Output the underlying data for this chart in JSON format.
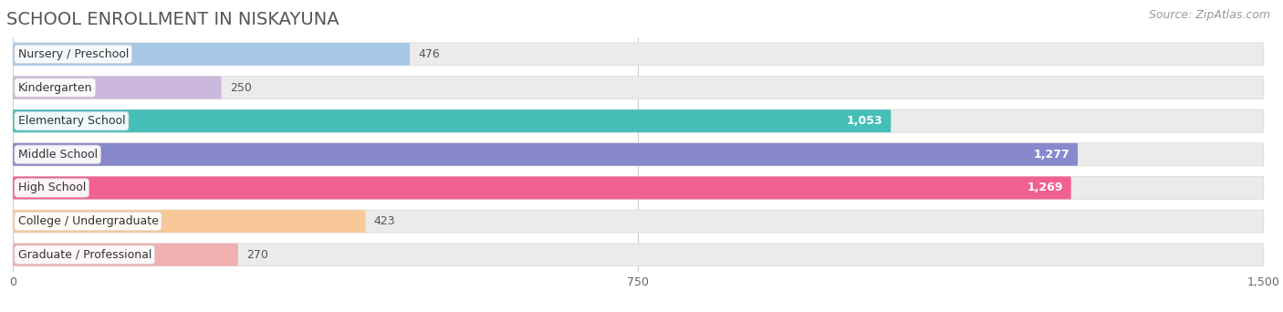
{
  "title": "SCHOOL ENROLLMENT IN NISKAYUNA",
  "source": "Source: ZipAtlas.com",
  "categories": [
    "Nursery / Preschool",
    "Kindergarten",
    "Elementary School",
    "Middle School",
    "High School",
    "College / Undergraduate",
    "Graduate / Professional"
  ],
  "values": [
    476,
    250,
    1053,
    1277,
    1269,
    423,
    270
  ],
  "bar_colors": [
    "#a8c8e8",
    "#ccb8dc",
    "#46bfb8",
    "#8888cc",
    "#f06090",
    "#f8c898",
    "#f0b0b0"
  ],
  "label_colors": [
    "#444444",
    "#444444",
    "#ffffff",
    "#ffffff",
    "#ffffff",
    "#444444",
    "#444444"
  ],
  "xlim": [
    0,
    1500
  ],
  "xticks": [
    0,
    750,
    1500
  ],
  "background_color": "#ffffff",
  "bar_bg_color": "#ebebeb",
  "title_fontsize": 14,
  "source_fontsize": 9,
  "label_fontsize": 9,
  "value_fontsize": 9
}
